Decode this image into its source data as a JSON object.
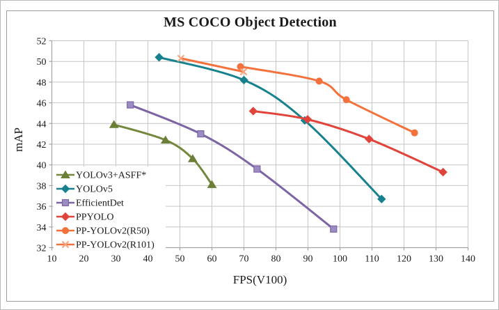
{
  "figure": {
    "background": "#ffffff",
    "frame_border_color": "#9d9d9d"
  },
  "chart_data": {
    "type": "line",
    "title": "MS COCO Object Detection",
    "xlabel": "FPS(V100)",
    "ylabel": "mAP",
    "xlim": [
      10,
      140
    ],
    "xtick_step": 10,
    "ylim": [
      32,
      52
    ],
    "ytick_step": 2,
    "grid": true,
    "legend_position": "inside-bottom-left",
    "gridline_color": "#c6c6c6",
    "axis_color": "#a3a3a3",
    "series": [
      {
        "name": "YOLOv3+ASFF*",
        "marker": "triangle",
        "color": "#73883C",
        "marker_color": "#6B7F36",
        "points": [
          [
            29.4,
            43.9
          ],
          [
            45.5,
            42.4
          ],
          [
            54,
            40.6
          ],
          [
            60,
            38.1
          ]
        ]
      },
      {
        "name": "YOLOv5",
        "marker": "diamond",
        "color": "#17818E",
        "marker_color": "#17818E",
        "points": [
          [
            43.5,
            50.4
          ],
          [
            70,
            48.2
          ],
          [
            89,
            44.3
          ],
          [
            113,
            36.7
          ]
        ]
      },
      {
        "name": "EfficientDet",
        "marker": "square",
        "color": "#7C64A5",
        "marker_color": "#9C8CC4",
        "points": [
          [
            34.5,
            45.8
          ],
          [
            56.5,
            43.0
          ],
          [
            74.1,
            39.6
          ],
          [
            98,
            33.8
          ]
        ]
      },
      {
        "name": "PPYOLO",
        "marker": "diamond",
        "color": "#E0443A",
        "marker_color": "#E0443A",
        "points": [
          [
            72.9,
            45.2
          ],
          [
            89.9,
            44.4
          ],
          [
            109.1,
            42.5
          ],
          [
            132.2,
            39.3
          ]
        ]
      },
      {
        "name": "PP-YOLOv2(R50)",
        "marker": "circle",
        "color": "#F4713B",
        "marker_color": "#F4713B",
        "points": [
          [
            68.9,
            49.5
          ],
          [
            93.5,
            48.1
          ],
          [
            102,
            46.3
          ],
          [
            123.3,
            43.1
          ]
        ]
      },
      {
        "name": "PP-YOLOv2(R101)",
        "marker": "x",
        "color": "#F4713B",
        "marker_color": "#F8A57E",
        "points": [
          [
            50.3,
            50.3
          ],
          [
            69.9,
            49.0
          ]
        ]
      }
    ]
  }
}
